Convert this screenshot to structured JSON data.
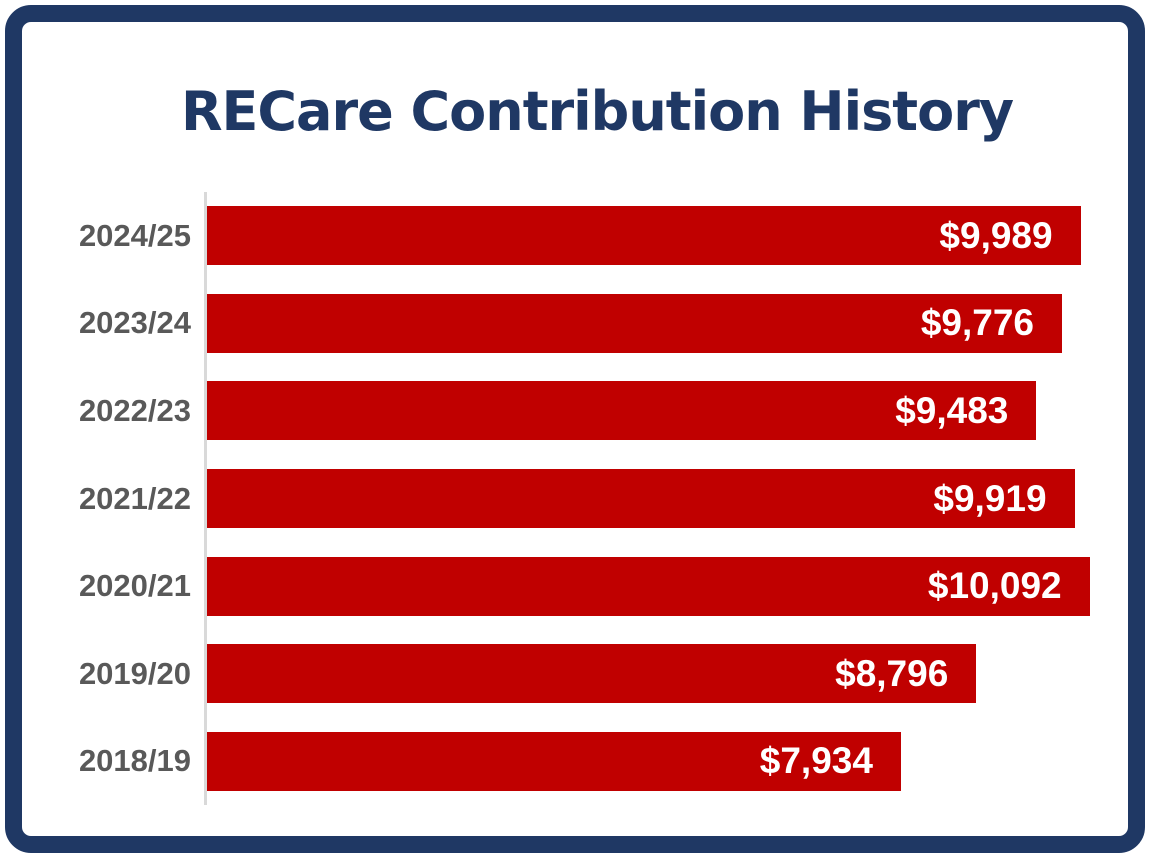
{
  "title": "RECare Contribution History",
  "chart_data": {
    "type": "bar",
    "orientation": "horizontal",
    "title": "RECare Contribution History",
    "xlabel": "",
    "ylabel": "",
    "grid": false,
    "legend": "none",
    "categories": [
      "2024/25",
      "2023/24",
      "2022/23",
      "2021/22",
      "2020/21",
      "2019/20",
      "2018/19"
    ],
    "values": [
      9989,
      9776,
      9483,
      9919,
      10092,
      8796,
      7934
    ],
    "value_labels": [
      "$9,989",
      "$9,776",
      "$9,483",
      "$9,919",
      "$10,092",
      "$8,796",
      "$7,934"
    ],
    "colors": {
      "bar": "#C00000",
      "value_label": "#FFFFFF",
      "category_label": "#595959",
      "axis_line": "#D9D9D9",
      "title": "#1F3864",
      "page_border": "#1F3864",
      "background": "#FFFFFF"
    }
  }
}
